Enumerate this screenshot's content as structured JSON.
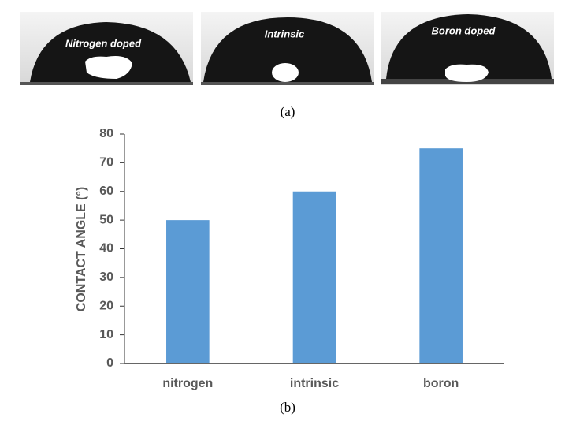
{
  "photos": {
    "labels": [
      "Nitrogen doped",
      "Intrinsic",
      "Boron doped"
    ],
    "caption": "(a)"
  },
  "chart_data": {
    "type": "bar",
    "y_label": "CONTACT ANGLE (°)",
    "caption": "(b)",
    "categories": [
      "nitrogen",
      "intrinsic",
      "boron"
    ],
    "values": [
      50,
      60,
      75
    ],
    "color": "#5b9bd5",
    "ylim": [
      0,
      80
    ],
    "yticks": [
      0,
      10,
      20,
      30,
      40,
      50,
      60,
      70,
      80
    ],
    "grid": false
  }
}
